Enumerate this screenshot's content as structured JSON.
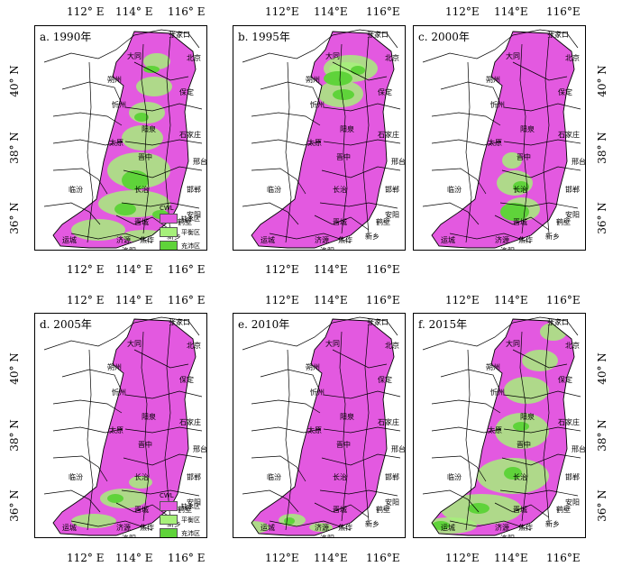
{
  "colors": {
    "deficit": "#e359e0",
    "balance": "#a6f07a",
    "surplus": "#5fd33a",
    "boundary": "#000000"
  },
  "axes": {
    "top_ticks": [
      "112° E",
      "114° E",
      "116° E"
    ],
    "top_ticks_b": [
      "112°E",
      "114°E",
      "116°E"
    ],
    "top_ticks_c": [
      "112°E",
      "114°E",
      "116°E"
    ],
    "bottom_ticks_a": [
      "112° E",
      "114° E",
      "116° E"
    ],
    "bottom_ticks_b": [
      "112°E",
      "114°E",
      "116°E"
    ],
    "bottom_ticks_d": [
      "112° E",
      "114° E",
      "116° E"
    ],
    "bottom_ticks_e": [
      "112°E",
      "114°E",
      "116°E"
    ],
    "bottom_ticks_f": [
      "112°E",
      "114°E",
      "116°E"
    ],
    "left_ticks": [
      "40° N",
      "38° N",
      "36° N"
    ],
    "right_ticks": [
      "40° N",
      "38° N",
      "36° N"
    ]
  },
  "panels": [
    {
      "id": "a",
      "title": "a. 1990年",
      "deficit_share": 0.6,
      "balance_share": 0.3,
      "surplus_share": 0.1
    },
    {
      "id": "b",
      "title": "b. 1995年",
      "deficit_share": 0.8,
      "balance_share": 0.15,
      "surplus_share": 0.05
    },
    {
      "id": "c",
      "title": "c. 2000年",
      "deficit_share": 0.85,
      "balance_share": 0.1,
      "surplus_share": 0.05
    },
    {
      "id": "d",
      "title": "d. 2005年",
      "deficit_share": 0.92,
      "balance_share": 0.06,
      "surplus_share": 0.02
    },
    {
      "id": "e",
      "title": "e. 2010年",
      "deficit_share": 0.94,
      "balance_share": 0.05,
      "surplus_share": 0.01
    },
    {
      "id": "f",
      "title": "f. 2015年",
      "deficit_share": 0.75,
      "balance_share": 0.2,
      "surplus_share": 0.05
    }
  ],
  "cities": [
    "张家口",
    "北京",
    "大同",
    "朔州",
    "保定",
    "忻州",
    "阳泉",
    "石家庄",
    "太原",
    "晋中",
    "邢台",
    "邯郸",
    "长治",
    "临汾",
    "安阳",
    "鹤壁",
    "晋城",
    "运城",
    "济源",
    "焦作",
    "新乡",
    "洛阳"
  ],
  "legend": {
    "title": "CWL",
    "items": [
      "缺水区",
      "平衡区",
      "充沛区"
    ],
    "scale": "100 km",
    "scale_zero": "0"
  }
}
